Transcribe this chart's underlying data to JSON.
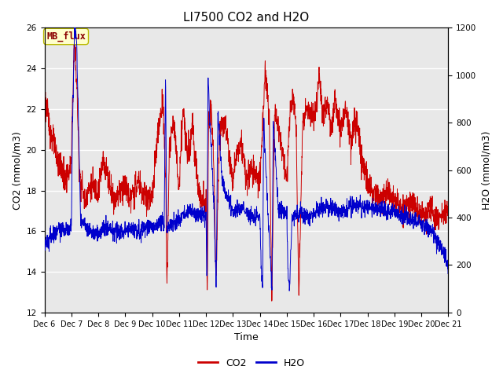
{
  "title": "LI7500 CO2 and H2O",
  "xlabel": "Time",
  "ylabel_left": "CO2 (mmol/m3)",
  "ylabel_right": "H2O (mmol/m3)",
  "ylim_left": [
    12,
    26
  ],
  "ylim_right": [
    0,
    1200
  ],
  "yticks_left": [
    12,
    14,
    16,
    18,
    20,
    22,
    24,
    26
  ],
  "yticks_right": [
    0,
    200,
    400,
    600,
    800,
    1000,
    1200
  ],
  "xtick_labels": [
    "Dec 6",
    "Dec 7",
    "Dec 8",
    "Dec 9",
    "Dec 10",
    "Dec 11",
    "Dec 12",
    "Dec 13",
    "Dec 14",
    "Dec 15",
    "Dec 16",
    "Dec 17",
    "Dec 18",
    "Dec 19",
    "Dec 20",
    "Dec 21"
  ],
  "color_co2": "#cc0000",
  "color_h2o": "#0000cc",
  "legend_label_co2": "CO2",
  "legend_label_h2o": "H2O",
  "annotation_text": "MB_flux",
  "plot_bg_color": "#e8e8e8",
  "title_fontsize": 11,
  "axis_fontsize": 9,
  "tick_fontsize": 7.5,
  "legend_fontsize": 9
}
